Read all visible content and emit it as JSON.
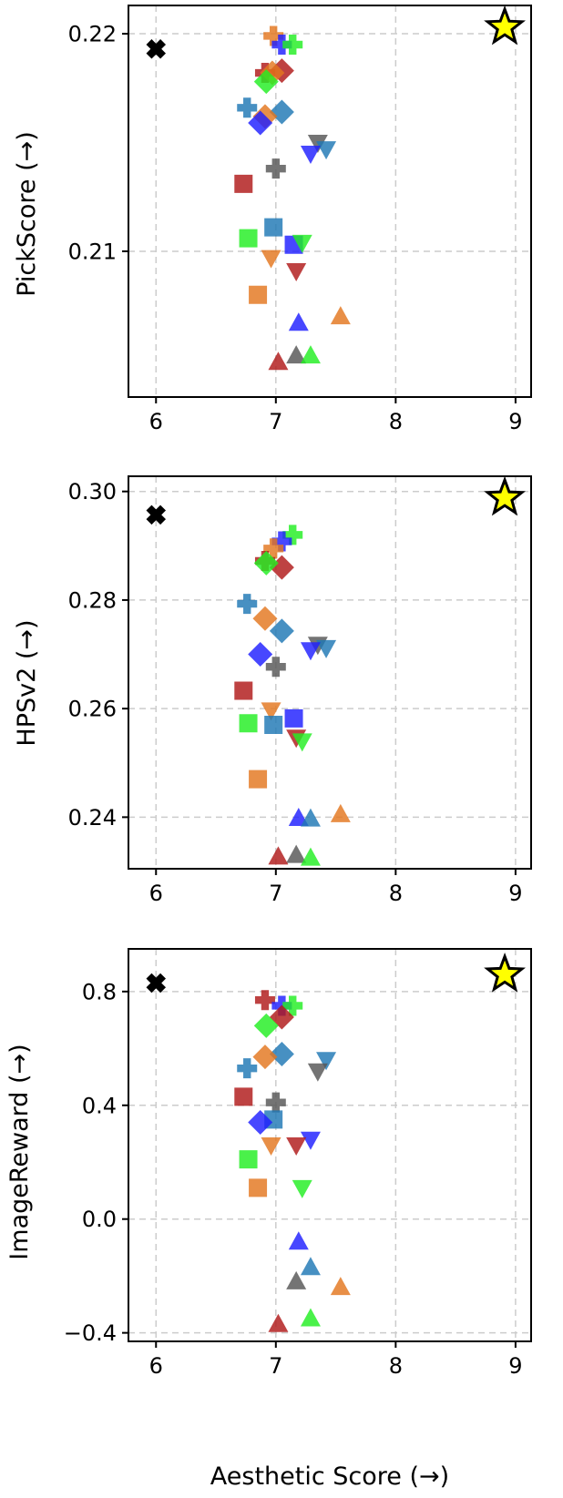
{
  "colors": {
    "blue": "#1f1fff",
    "steel": "#1f77b4",
    "orange": "#e3761e",
    "red": "#b01818",
    "green": "#22ee22",
    "gray": "#555555",
    "black": "#000000",
    "star": "#ffff00"
  },
  "chart_data": [
    {
      "type": "scatter",
      "xlabel": "",
      "ylabel": "PickScore (→)",
      "xlim": [
        5.77,
        9.13
      ],
      "ylim": [
        0.2033,
        0.2213
      ],
      "xticks": [
        {
          "v": 6,
          "label": "6"
        },
        {
          "v": 7,
          "label": "7"
        },
        {
          "v": 8,
          "label": "8"
        },
        {
          "v": 9,
          "label": "9"
        }
      ],
      "yticks": [
        {
          "v": 0.21,
          "label": "0.21"
        },
        {
          "v": 0.22,
          "label": "0.22"
        }
      ],
      "grid": true,
      "points": [
        {
          "x": 6.0,
          "y": 0.2193,
          "marker": "x",
          "color": "black"
        },
        {
          "x": 8.91,
          "y": 0.2203,
          "marker": "star",
          "color": "star"
        },
        {
          "x": 6.98,
          "y": 0.2199,
          "marker": "plus",
          "color": "orange"
        },
        {
          "x": 7.05,
          "y": 0.2195,
          "marker": "plus",
          "color": "blue"
        },
        {
          "x": 7.14,
          "y": 0.2195,
          "marker": "plus",
          "color": "green"
        },
        {
          "x": 6.91,
          "y": 0.2182,
          "marker": "plus",
          "color": "red"
        },
        {
          "x": 7.05,
          "y": 0.2183,
          "marker": "diamond",
          "color": "red"
        },
        {
          "x": 6.97,
          "y": 0.2182,
          "marker": "diamond",
          "color": "orange"
        },
        {
          "x": 6.92,
          "y": 0.2178,
          "marker": "diamond",
          "color": "green"
        },
        {
          "x": 6.76,
          "y": 0.2166,
          "marker": "plus",
          "color": "steel"
        },
        {
          "x": 7.05,
          "y": 0.2164,
          "marker": "diamond",
          "color": "steel"
        },
        {
          "x": 6.91,
          "y": 0.2162,
          "marker": "diamond",
          "color": "orange"
        },
        {
          "x": 6.87,
          "y": 0.2159,
          "marker": "diamond",
          "color": "blue"
        },
        {
          "x": 7.35,
          "y": 0.215,
          "marker": "tri-down",
          "color": "gray"
        },
        {
          "x": 7.42,
          "y": 0.2147,
          "marker": "tri-down",
          "color": "steel"
        },
        {
          "x": 7.29,
          "y": 0.2145,
          "marker": "tri-down",
          "color": "blue"
        },
        {
          "x": 7.0,
          "y": 0.2138,
          "marker": "plus",
          "color": "gray"
        },
        {
          "x": 6.73,
          "y": 0.2131,
          "marker": "square",
          "color": "red"
        },
        {
          "x": 6.98,
          "y": 0.2111,
          "marker": "square",
          "color": "steel"
        },
        {
          "x": 6.77,
          "y": 0.2106,
          "marker": "square",
          "color": "green"
        },
        {
          "x": 7.15,
          "y": 0.2103,
          "marker": "square",
          "color": "blue"
        },
        {
          "x": 7.22,
          "y": 0.2104,
          "marker": "tri-down",
          "color": "green"
        },
        {
          "x": 6.96,
          "y": 0.2097,
          "marker": "tri-down",
          "color": "orange"
        },
        {
          "x": 7.17,
          "y": 0.2091,
          "marker": "tri-down",
          "color": "red"
        },
        {
          "x": 6.85,
          "y": 0.208,
          "marker": "square",
          "color": "orange"
        },
        {
          "x": 7.54,
          "y": 0.207,
          "marker": "triangle",
          "color": "orange"
        },
        {
          "x": 7.19,
          "y": 0.2067,
          "marker": "triangle",
          "color": "blue"
        },
        {
          "x": 7.17,
          "y": 0.2052,
          "marker": "triangle",
          "color": "gray"
        },
        {
          "x": 7.29,
          "y": 0.2052,
          "marker": "triangle",
          "color": "green"
        },
        {
          "x": 7.02,
          "y": 0.2049,
          "marker": "triangle",
          "color": "red"
        }
      ]
    },
    {
      "type": "scatter",
      "xlabel": "",
      "ylabel": "HPSv2 (→)",
      "xlim": [
        5.77,
        9.13
      ],
      "ylim": [
        0.2305,
        0.3028
      ],
      "xticks": [
        {
          "v": 6,
          "label": "6"
        },
        {
          "v": 7,
          "label": "7"
        },
        {
          "v": 8,
          "label": "8"
        },
        {
          "v": 9,
          "label": "9"
        }
      ],
      "yticks": [
        {
          "v": 0.24,
          "label": "0.24"
        },
        {
          "v": 0.26,
          "label": "0.26"
        },
        {
          "v": 0.28,
          "label": "0.28"
        },
        {
          "v": 0.3,
          "label": "0.30"
        }
      ],
      "grid": true,
      "points": [
        {
          "x": 6.0,
          "y": 0.2957,
          "marker": "x",
          "color": "black"
        },
        {
          "x": 8.91,
          "y": 0.2988,
          "marker": "star",
          "color": "star"
        },
        {
          "x": 7.14,
          "y": 0.292,
          "marker": "plus",
          "color": "green"
        },
        {
          "x": 7.05,
          "y": 0.2908,
          "marker": "plus",
          "color": "blue"
        },
        {
          "x": 6.98,
          "y": 0.2895,
          "marker": "plus",
          "color": "orange"
        },
        {
          "x": 6.91,
          "y": 0.2872,
          "marker": "plus",
          "color": "red"
        },
        {
          "x": 7.05,
          "y": 0.286,
          "marker": "diamond",
          "color": "red"
        },
        {
          "x": 6.92,
          "y": 0.2868,
          "marker": "diamond",
          "color": "green"
        },
        {
          "x": 6.76,
          "y": 0.2793,
          "marker": "plus",
          "color": "steel"
        },
        {
          "x": 6.91,
          "y": 0.2766,
          "marker": "diamond",
          "color": "orange"
        },
        {
          "x": 7.05,
          "y": 0.2743,
          "marker": "diamond",
          "color": "steel"
        },
        {
          "x": 7.35,
          "y": 0.2718,
          "marker": "tri-down",
          "color": "gray"
        },
        {
          "x": 7.42,
          "y": 0.2712,
          "marker": "tri-down",
          "color": "steel"
        },
        {
          "x": 7.29,
          "y": 0.2708,
          "marker": "tri-down",
          "color": "blue"
        },
        {
          "x": 6.87,
          "y": 0.27,
          "marker": "diamond",
          "color": "blue"
        },
        {
          "x": 7.0,
          "y": 0.2677,
          "marker": "plus",
          "color": "gray"
        },
        {
          "x": 6.73,
          "y": 0.2633,
          "marker": "square",
          "color": "red"
        },
        {
          "x": 6.96,
          "y": 0.2597,
          "marker": "tri-down",
          "color": "orange"
        },
        {
          "x": 7.15,
          "y": 0.2582,
          "marker": "square",
          "color": "blue"
        },
        {
          "x": 6.77,
          "y": 0.2573,
          "marker": "square",
          "color": "green"
        },
        {
          "x": 6.98,
          "y": 0.257,
          "marker": "square",
          "color": "steel"
        },
        {
          "x": 7.17,
          "y": 0.2547,
          "marker": "tri-down",
          "color": "red"
        },
        {
          "x": 7.22,
          "y": 0.254,
          "marker": "tri-down",
          "color": "green"
        },
        {
          "x": 6.85,
          "y": 0.247,
          "marker": "square",
          "color": "orange"
        },
        {
          "x": 7.54,
          "y": 0.2405,
          "marker": "triangle",
          "color": "orange"
        },
        {
          "x": 7.19,
          "y": 0.2398,
          "marker": "triangle",
          "color": "blue"
        },
        {
          "x": 7.29,
          "y": 0.2397,
          "marker": "triangle",
          "color": "steel"
        },
        {
          "x": 7.17,
          "y": 0.233,
          "marker": "triangle",
          "color": "gray"
        },
        {
          "x": 7.02,
          "y": 0.2327,
          "marker": "triangle",
          "color": "red"
        },
        {
          "x": 7.29,
          "y": 0.2325,
          "marker": "triangle",
          "color": "green"
        }
      ]
    },
    {
      "type": "scatter",
      "xlabel": "Aesthetic Score (→)",
      "ylabel": "ImageReward (→)",
      "xlim": [
        5.77,
        9.13
      ],
      "ylim": [
        -0.43,
        0.95
      ],
      "xticks": [
        {
          "v": 6,
          "label": "6"
        },
        {
          "v": 7,
          "label": "7"
        },
        {
          "v": 8,
          "label": "8"
        },
        {
          "v": 9,
          "label": "9"
        }
      ],
      "yticks": [
        {
          "v": -0.4,
          "label": "−0.4"
        },
        {
          "v": 0.0,
          "label": "0.0"
        },
        {
          "v": 0.4,
          "label": "0.4"
        },
        {
          "v": 0.8,
          "label": "0.8"
        }
      ],
      "grid": true,
      "points": [
        {
          "x": 6.0,
          "y": 0.83,
          "marker": "x",
          "color": "black"
        },
        {
          "x": 8.91,
          "y": 0.86,
          "marker": "star",
          "color": "star"
        },
        {
          "x": 6.91,
          "y": 0.77,
          "marker": "plus",
          "color": "red"
        },
        {
          "x": 7.05,
          "y": 0.75,
          "marker": "plus",
          "color": "blue"
        },
        {
          "x": 7.14,
          "y": 0.75,
          "marker": "plus",
          "color": "green"
        },
        {
          "x": 7.05,
          "y": 0.71,
          "marker": "diamond",
          "color": "red"
        },
        {
          "x": 6.92,
          "y": 0.68,
          "marker": "diamond",
          "color": "green"
        },
        {
          "x": 7.05,
          "y": 0.58,
          "marker": "diamond",
          "color": "steel"
        },
        {
          "x": 6.91,
          "y": 0.57,
          "marker": "diamond",
          "color": "orange"
        },
        {
          "x": 7.42,
          "y": 0.56,
          "marker": "tri-down",
          "color": "steel"
        },
        {
          "x": 6.76,
          "y": 0.53,
          "marker": "plus",
          "color": "steel"
        },
        {
          "x": 7.35,
          "y": 0.52,
          "marker": "tri-down",
          "color": "gray"
        },
        {
          "x": 6.73,
          "y": 0.43,
          "marker": "square",
          "color": "red"
        },
        {
          "x": 7.0,
          "y": 0.41,
          "marker": "plus",
          "color": "gray"
        },
        {
          "x": 6.98,
          "y": 0.35,
          "marker": "square",
          "color": "steel"
        },
        {
          "x": 6.87,
          "y": 0.34,
          "marker": "diamond",
          "color": "blue"
        },
        {
          "x": 7.29,
          "y": 0.28,
          "marker": "tri-down",
          "color": "blue"
        },
        {
          "x": 6.96,
          "y": 0.26,
          "marker": "tri-down",
          "color": "orange"
        },
        {
          "x": 7.17,
          "y": 0.26,
          "marker": "tri-down",
          "color": "red"
        },
        {
          "x": 6.77,
          "y": 0.21,
          "marker": "square",
          "color": "green"
        },
        {
          "x": 7.22,
          "y": 0.11,
          "marker": "tri-down",
          "color": "green"
        },
        {
          "x": 6.85,
          "y": 0.11,
          "marker": "square",
          "color": "orange"
        },
        {
          "x": 7.19,
          "y": -0.08,
          "marker": "triangle",
          "color": "blue"
        },
        {
          "x": 7.29,
          "y": -0.17,
          "marker": "triangle",
          "color": "steel"
        },
        {
          "x": 7.17,
          "y": -0.22,
          "marker": "triangle",
          "color": "gray"
        },
        {
          "x": 7.54,
          "y": -0.24,
          "marker": "triangle",
          "color": "orange"
        },
        {
          "x": 7.29,
          "y": -0.35,
          "marker": "triangle",
          "color": "green"
        },
        {
          "x": 7.02,
          "y": -0.37,
          "marker": "triangle",
          "color": "red"
        }
      ]
    }
  ]
}
